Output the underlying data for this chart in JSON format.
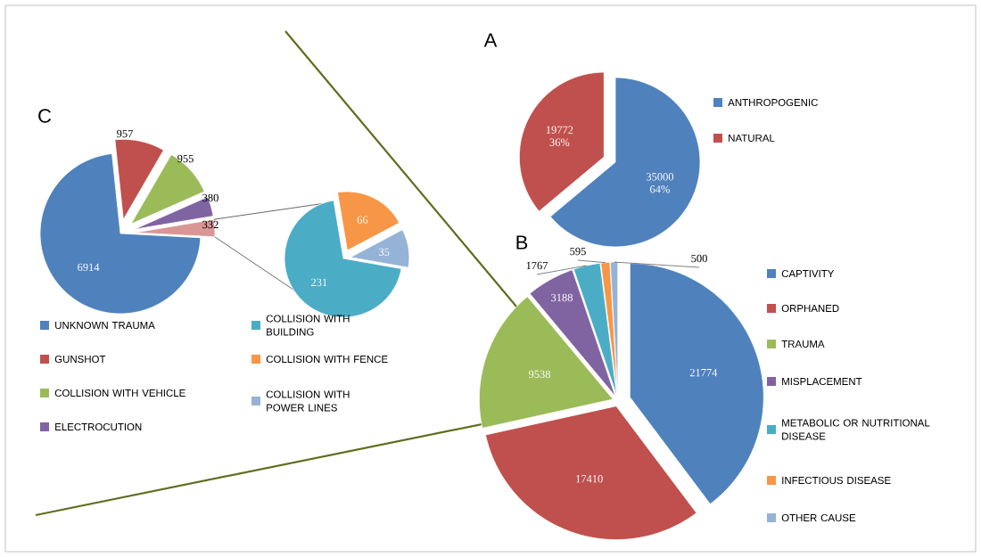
{
  "chart_data": [
    {
      "type": "pie",
      "title": "A",
      "categories": [
        "ANTHROPOGENIC",
        "NATURAL"
      ],
      "values": [
        35000,
        19772
      ],
      "colors": [
        "#4f81bd",
        "#c0504d"
      ],
      "value_labels": [
        "35000 64%",
        "19772 36%"
      ],
      "legend": "right"
    },
    {
      "type": "pie",
      "title": "B",
      "categories": [
        "CAPTIVITY",
        "ORPHANED",
        "TRAUMA",
        "MISPLACEMENT",
        "METABOLIC OR NUTRITIONAL DISEASE",
        "INFECTIOUS DISEASE",
        "OTHER CAUSE"
      ],
      "values": [
        21774,
        17410,
        9538,
        3188,
        1767,
        595,
        500
      ],
      "colors": [
        "#4f81bd",
        "#c0504d",
        "#9bbb59",
        "#8064a2",
        "#4bacc6",
        "#f79646",
        "#95b3d7"
      ],
      "data_labels": true,
      "legend": "right"
    },
    {
      "type": "pie",
      "title": "C",
      "categories": [
        "UNKNOWN TRAUMA",
        "GUNSHOT",
        "COLLISION WITH VEHICLE",
        "ELECTROCUTION",
        null
      ],
      "values": [
        6914,
        957,
        955,
        380,
        332
      ],
      "colors": [
        "#4f81bd",
        "#c0504d",
        "#9bbb59",
        "#8064a2",
        "#d99694"
      ],
      "data_labels": true,
      "legend": "bottom"
    },
    {
      "type": "pie",
      "categories": [
        "COLLISION WITH BUILDING",
        "COLLISION WITH FENCE",
        "COLLISION WITH POWER LINES"
      ],
      "values": [
        231,
        66,
        35
      ],
      "colors": [
        "#4bacc6",
        "#f79646",
        "#95b3d7"
      ],
      "data_labels": true,
      "legend": "bottom"
    }
  ]
}
